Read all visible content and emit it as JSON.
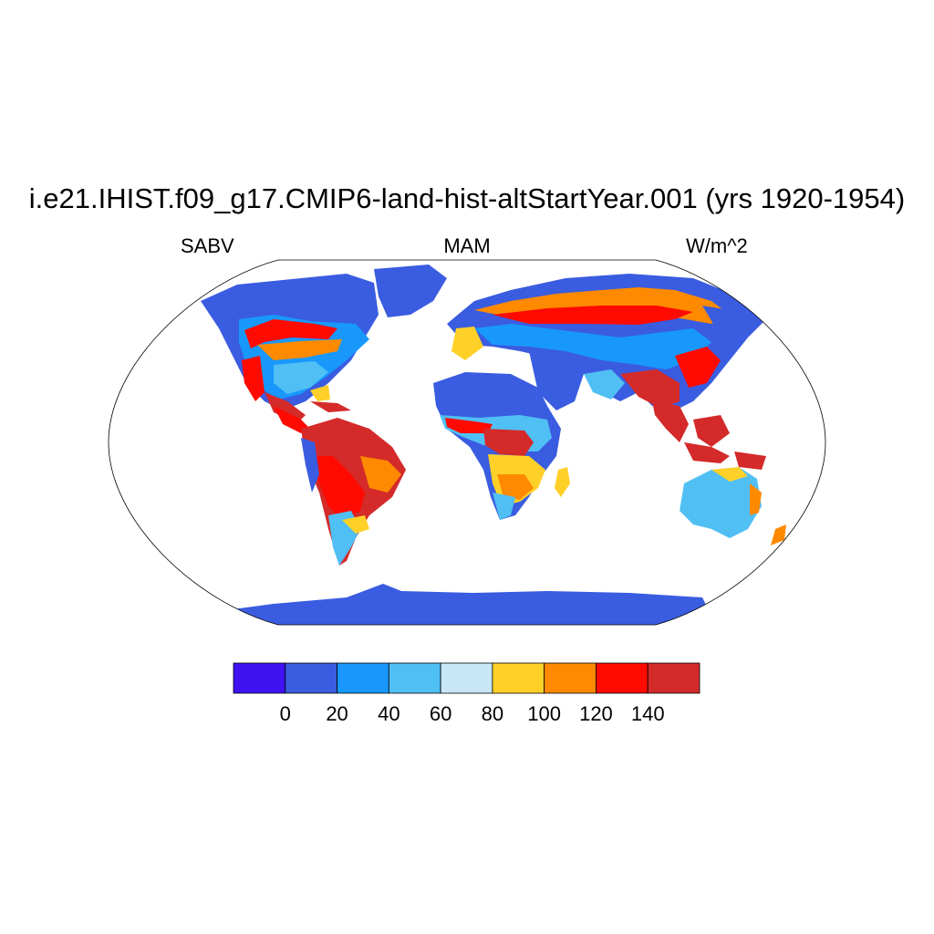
{
  "title": "i.e21.IHIST.f09_g17.CMIP6-land-hist-altStartYear.001 (yrs 1920-1954)",
  "left_label": "SABV",
  "center_label": "MAM",
  "right_label": "W/m^2",
  "projection": "Robinson",
  "colorbar": {
    "colors": [
      "#3f12f2",
      "#3a5ce0",
      "#1898fc",
      "#50bff4",
      "#c8e6f6",
      "#ffd128",
      "#ff8a00",
      "#ff0a00",
      "#d42a2a"
    ],
    "tick_labels": [
      "0",
      "20",
      "40",
      "60",
      "80",
      "100",
      "120",
      "140"
    ]
  }
}
